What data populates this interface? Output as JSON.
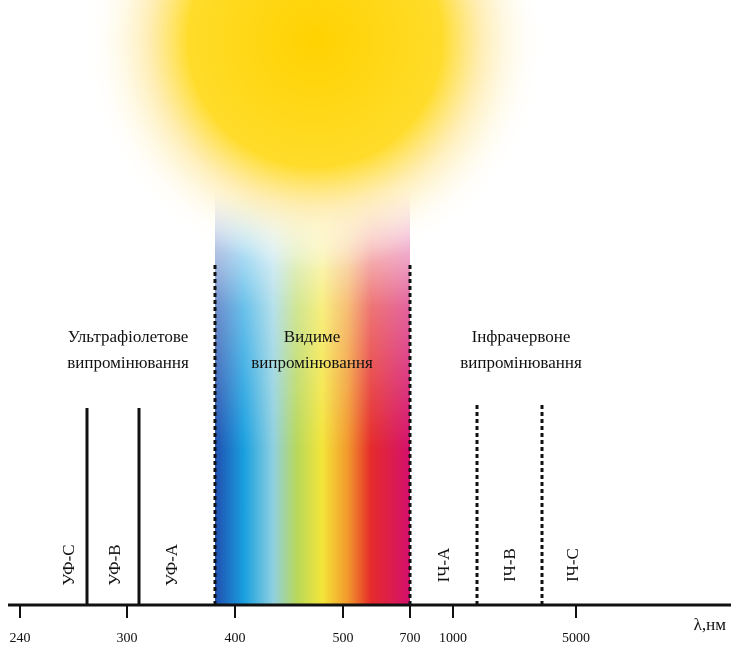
{
  "regions": [
    {
      "line1": "Ультрафіолетове",
      "line2": "випромінювання"
    },
    {
      "line1": "Видиме",
      "line2": "випромінювання"
    },
    {
      "line1": "Інфрачервоне",
      "line2": "випромінювання"
    }
  ],
  "bands": [
    "УФ-С",
    "УФ-В",
    "УФ-А",
    "ІЧ-А",
    "ІЧ-В",
    "ІЧ-С"
  ],
  "axis": {
    "label": "λ,нм",
    "ticks": [
      "240",
      "300",
      "400",
      "500",
      "700",
      "1000",
      "5000"
    ]
  }
}
